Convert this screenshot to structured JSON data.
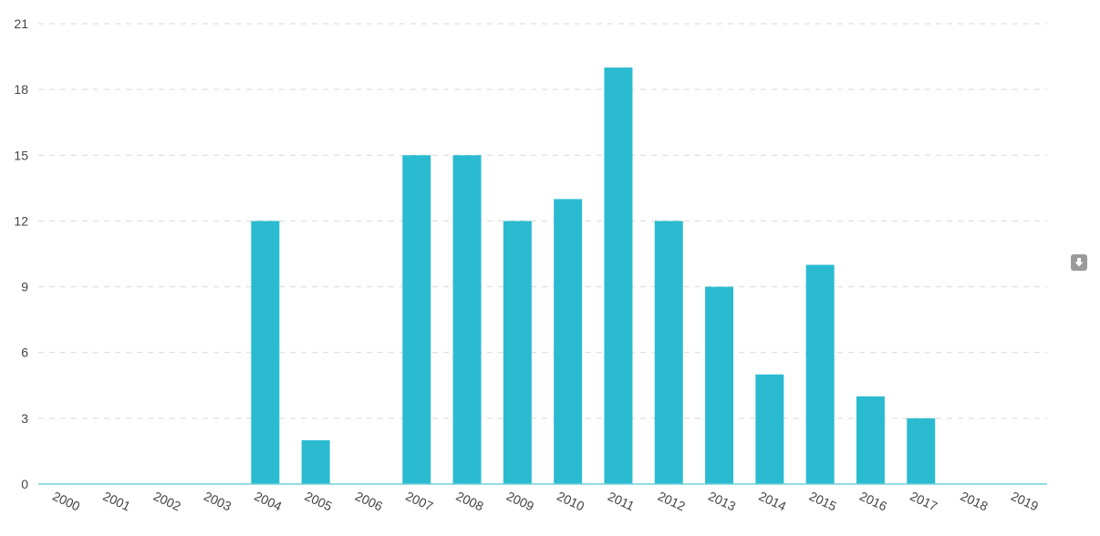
{
  "chart_data": {
    "type": "bar",
    "categories": [
      "2000",
      "2001",
      "2002",
      "2003",
      "2004",
      "2005",
      "2006",
      "2007",
      "2008",
      "2009",
      "2010",
      "2011",
      "2012",
      "2013",
      "2014",
      "2015",
      "2016",
      "2017",
      "2018",
      "2019"
    ],
    "values": [
      0,
      0,
      0,
      0,
      12,
      2,
      0,
      15,
      15,
      12,
      13,
      19,
      12,
      9,
      5,
      10,
      4,
      3,
      0,
      0
    ],
    "ylim": [
      0,
      21
    ],
    "yticks": [
      0,
      3,
      6,
      9,
      12,
      15,
      18,
      21
    ],
    "title": "",
    "xlabel": "",
    "ylabel": "",
    "grid": true,
    "bar_color": "#2bbbd0",
    "axis_color": "#6fd0da"
  },
  "toolbar": {
    "download_icon": "download-icon"
  }
}
